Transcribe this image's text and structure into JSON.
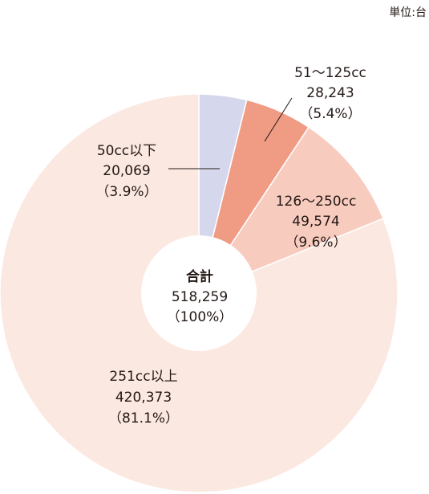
{
  "unit_label": "単位:台",
  "total": {
    "title": "合計",
    "value": "518,259",
    "pct": "（100%）"
  },
  "segments": [
    {
      "name": "50cc以下",
      "value_text": "20,069",
      "pct_text": "（3.9%）",
      "color": "#d5d8ec"
    },
    {
      "name": "51〜125cc",
      "value_text": "28,243",
      "pct_text": "（5.4%）",
      "color": "#f09b84"
    },
    {
      "name": "126〜250cc",
      "value_text": "49,574",
      "pct_text": "（9.6%）",
      "color": "#f8cbbf"
    },
    {
      "name": "251cc以上",
      "value_text": "420,373",
      "pct_text": "（81.1%）",
      "color": "#fbe8e1"
    }
  ],
  "chart_data": {
    "type": "pie",
    "categories": [
      "50cc以下",
      "51〜125cc",
      "126〜250cc",
      "251cc以上"
    ],
    "values": [
      20069,
      28243,
      49574,
      420373
    ],
    "percentages": [
      3.9,
      5.4,
      9.6,
      81.1
    ],
    "total": 518259,
    "unit": "単位:台",
    "donut": true,
    "start": "12 o'clock",
    "direction": "clockwise"
  }
}
